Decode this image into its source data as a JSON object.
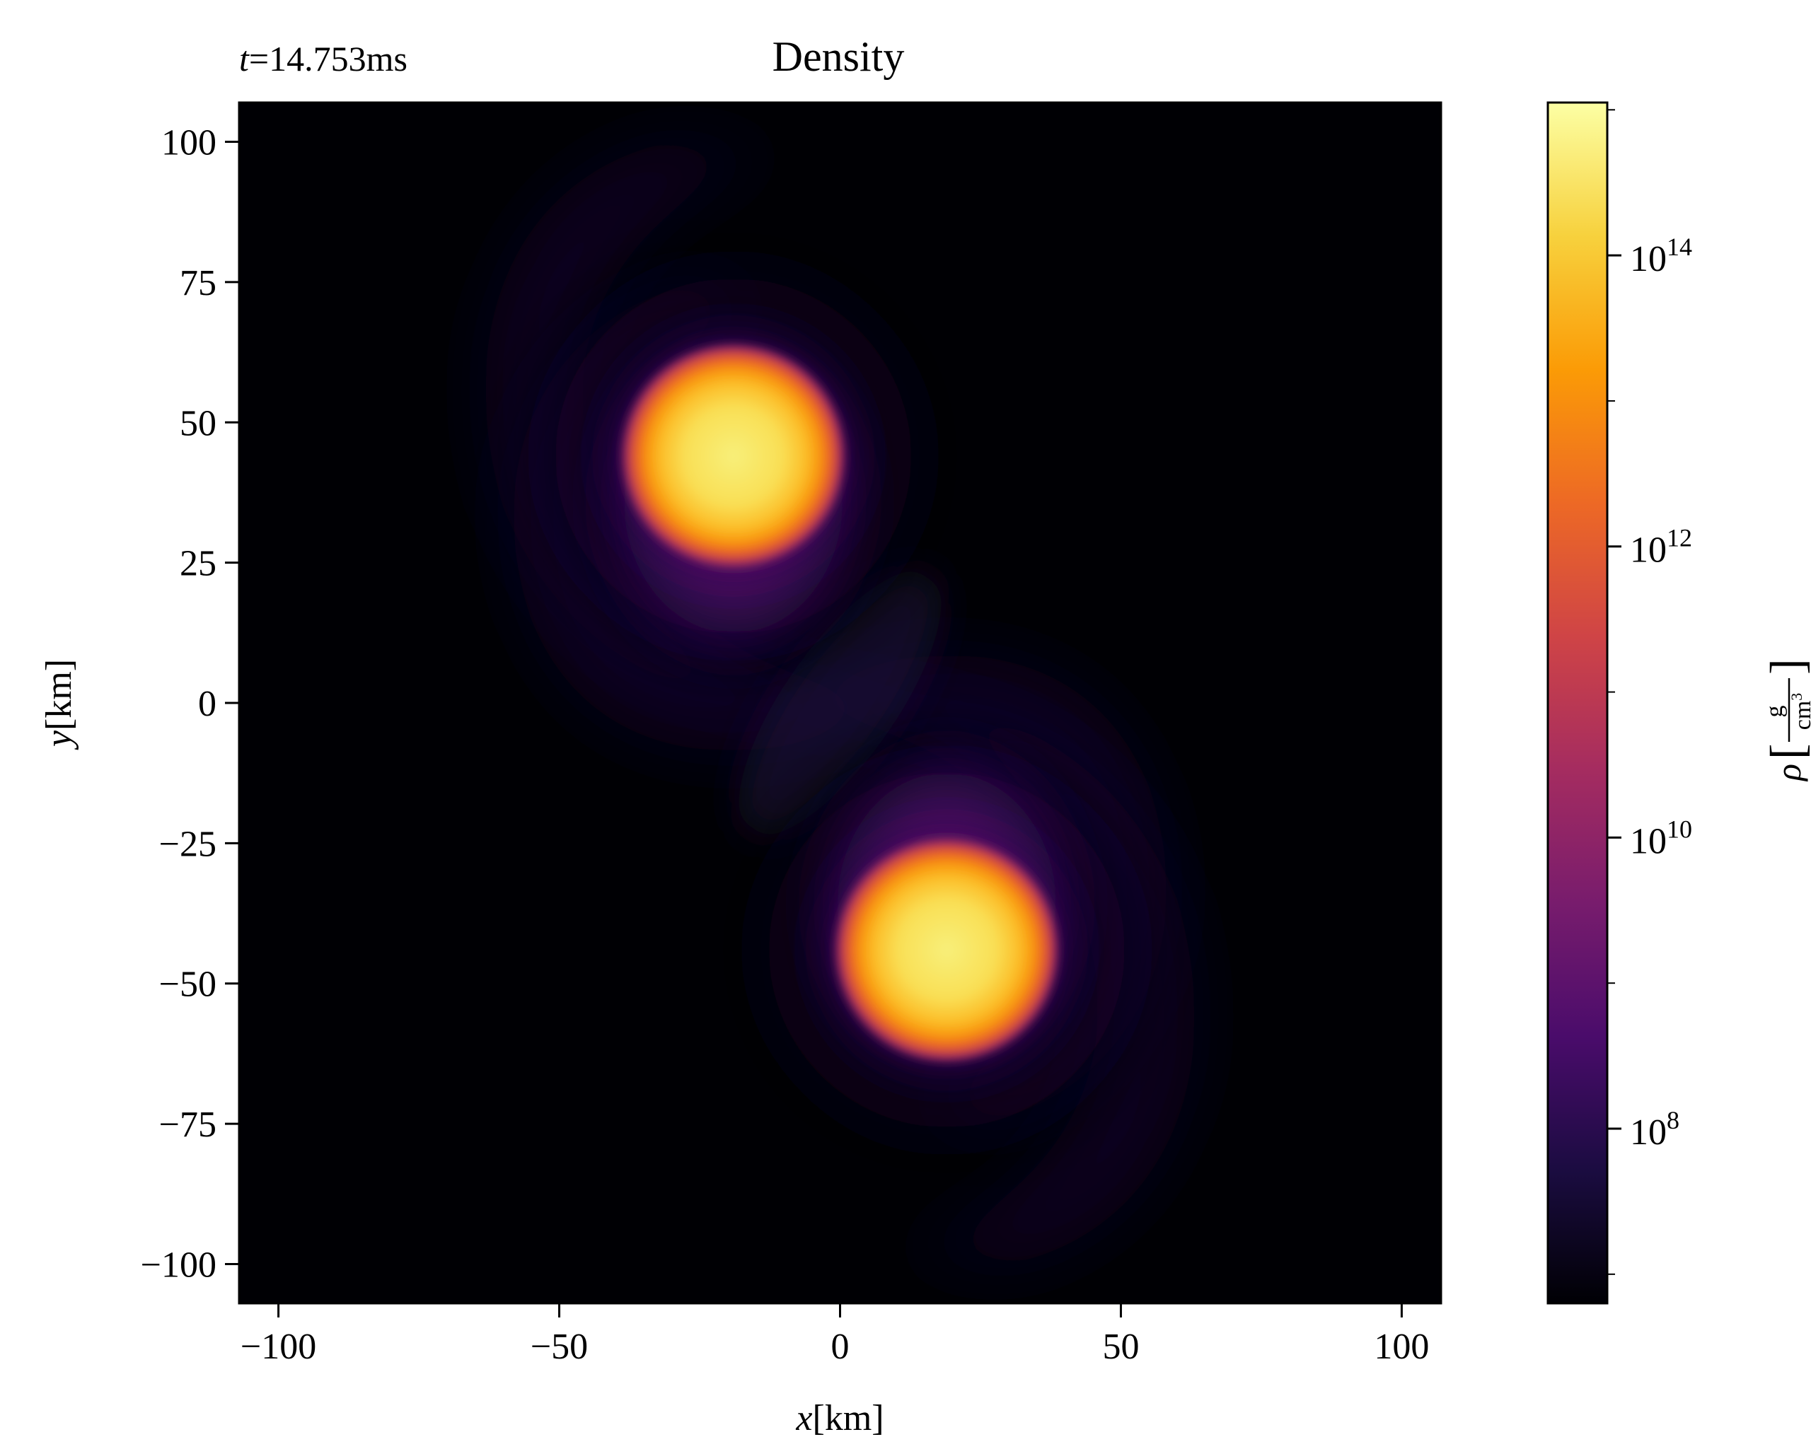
{
  "chart_data": {
    "type": "heatmap",
    "title": "Density",
    "annotation": {
      "prefix": "t",
      "equals": "=",
      "value": "14.753ms"
    },
    "x": {
      "label_var": "x",
      "label_unit": "[km]",
      "range": [
        -107,
        107
      ],
      "ticks": [
        -100,
        -50,
        0,
        50,
        100
      ],
      "tick_labels": [
        "−100",
        "−50",
        "0",
        "50",
        "100"
      ]
    },
    "y": {
      "label_var": "y",
      "label_unit": "[km]",
      "range": [
        -107,
        107
      ],
      "ticks": [
        100,
        75,
        50,
        25,
        0,
        -25,
        -50,
        -75,
        -100
      ],
      "tick_labels": [
        "100",
        "75",
        "50",
        "25",
        "0",
        "−25",
        "−50",
        "−75",
        "−100"
      ]
    },
    "colorbar": {
      "label_symbol": "ρ",
      "unit_numerator": "g",
      "unit_denominator": "cm",
      "unit_denominator_exp": "3",
      "scale": "log",
      "range_log10": [
        6.8,
        15.05
      ],
      "ticks": [
        {
          "log10": 14,
          "base": "10",
          "exp": "14"
        },
        {
          "log10": 12,
          "base": "10",
          "exp": "12"
        },
        {
          "log10": 10,
          "base": "10",
          "exp": "10"
        },
        {
          "log10": 8,
          "base": "10",
          "exp": "8"
        }
      ],
      "colormap": "inferno",
      "colormap_stops": [
        "#000004",
        "#1b0c41",
        "#4a0c6b",
        "#781c6d",
        "#a52c60",
        "#cf4446",
        "#ed6925",
        "#fb9b06",
        "#f7d13d",
        "#fcffa4"
      ]
    },
    "features": [
      {
        "name": "upper neutron star core",
        "center": [
          -19,
          44
        ],
        "core_radius": 15,
        "envelope_radius": 28
      },
      {
        "name": "lower neutron star core",
        "center": [
          19,
          -44
        ],
        "core_radius": 15,
        "envelope_radius": 28
      }
    ],
    "background_color": "#000004"
  }
}
